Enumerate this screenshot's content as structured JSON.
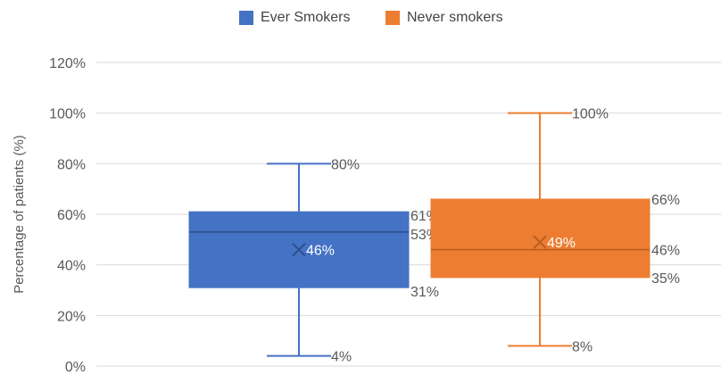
{
  "chart_data": {
    "type": "box",
    "ylabel": "Percentage of patients (%)",
    "ylim": [
      0,
      120
    ],
    "yticks": [
      0,
      20,
      40,
      60,
      80,
      100,
      120
    ],
    "ytick_labels": [
      "0%",
      "20%",
      "40%",
      "60%",
      "80%",
      "100%",
      "120%"
    ],
    "grid": true,
    "legend_position": "top",
    "series": [
      {
        "name": "Ever Smokers",
        "color": "#4472C4",
        "min": 4,
        "q1": 31,
        "median": 53,
        "q3": 61,
        "max": 80,
        "mean": 46,
        "labels": {
          "min": "4%",
          "q1": "31%",
          "median": "53%",
          "q3": "61%",
          "max": "80%",
          "mean": "46%"
        }
      },
      {
        "name": "Never smokers",
        "color": "#ED7D31",
        "min": 8,
        "q1": 35,
        "median": 46,
        "q3": 66,
        "max": 100,
        "mean": 49,
        "labels": {
          "min": "8%",
          "q1": "35%",
          "median": "46%",
          "q3": "66%",
          "max": "100%",
          "mean": "49%"
        }
      }
    ]
  }
}
